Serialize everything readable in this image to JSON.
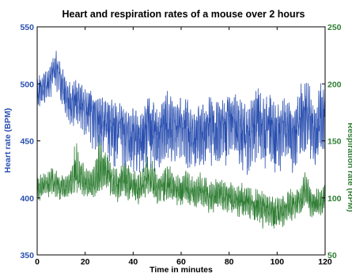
{
  "chart_data": {
    "type": "line",
    "title": "Heart and respiration rates of a mouse over 2 hours",
    "xlabel": "Time in minutes",
    "xlim": [
      0,
      120
    ],
    "xticks": [
      0,
      20,
      40,
      60,
      80,
      100,
      120
    ],
    "grid": false,
    "legend": "none",
    "y_left": {
      "label": "Heart rate (BPM)",
      "lim": [
        350,
        550
      ],
      "ticks": [
        350,
        400,
        450,
        500,
        550
      ],
      "color": "#2a4fb0"
    },
    "y_right": {
      "label": "Respiration rate (RPM)",
      "lim": [
        50,
        250
      ],
      "ticks": [
        50,
        100,
        150,
        200,
        250
      ],
      "color": "#2e7d32"
    },
    "series": [
      {
        "axis": "left",
        "color": "#2a4fb0",
        "x": [
          0,
          2,
          4,
          6,
          8,
          10,
          12,
          14,
          16,
          18,
          20,
          22,
          24,
          26,
          28,
          30,
          32,
          34,
          36,
          38,
          40,
          42,
          44,
          46,
          48,
          50,
          52,
          54,
          56,
          58,
          60,
          62,
          64,
          66,
          68,
          70,
          72,
          74,
          76,
          78,
          80,
          82,
          84,
          86,
          88,
          90,
          92,
          94,
          96,
          98,
          100,
          102,
          104,
          106,
          108,
          110,
          112,
          114,
          116,
          118,
          120
        ],
        "y": [
          492,
          496,
          500,
          508,
          515,
          502,
          490,
          483,
          488,
          486,
          482,
          478,
          474,
          470,
          466,
          467,
          463,
          464,
          462,
          458,
          455,
          453,
          456,
          465,
          462,
          454,
          459,
          468,
          464,
          461,
          468,
          463,
          456,
          452,
          462,
          458,
          466,
          460,
          462,
          465,
          468,
          471,
          462,
          458,
          452,
          464,
          470,
          462,
          465,
          463,
          458,
          462,
          466,
          455,
          462,
          472,
          475,
          470,
          455,
          475,
          480
        ],
        "min": [
          478,
          480,
          482,
          488,
          492,
          478,
          465,
          458,
          462,
          458,
          452,
          445,
          442,
          438,
          434,
          430,
          428,
          426,
          428,
          424,
          420,
          418,
          422,
          428,
          426,
          420,
          424,
          430,
          428,
          424,
          430,
          426,
          420,
          418,
          424,
          420,
          428,
          422,
          426,
          428,
          430,
          434,
          426,
          420,
          416,
          426,
          432,
          424,
          428,
          426,
          420,
          424,
          428,
          418,
          424,
          430,
          434,
          428,
          420,
          436,
          440
        ],
        "max": [
          505,
          510,
          514,
          522,
          530,
          518,
          506,
          500,
          504,
          502,
          498,
          494,
          492,
          490,
          488,
          490,
          486,
          488,
          486,
          482,
          480,
          478,
          482,
          492,
          488,
          480,
          485,
          494,
          490,
          486,
          494,
          488,
          482,
          478,
          488,
          484,
          492,
          486,
          488,
          491,
          494,
          497,
          488,
          484,
          478,
          490,
          496,
          488,
          491,
          489,
          484,
          488,
          492,
          480,
          488,
          500,
          504,
          496,
          482,
          500,
          502
        ]
      },
      {
        "axis": "right",
        "color": "#2e7d32",
        "x": [
          0,
          2,
          4,
          6,
          8,
          10,
          12,
          14,
          16,
          18,
          20,
          22,
          24,
          26,
          28,
          30,
          32,
          34,
          36,
          38,
          40,
          42,
          44,
          46,
          48,
          50,
          52,
          54,
          56,
          58,
          60,
          62,
          64,
          66,
          68,
          70,
          72,
          74,
          76,
          78,
          80,
          82,
          84,
          86,
          88,
          90,
          92,
          94,
          96,
          98,
          100,
          102,
          104,
          106,
          108,
          110,
          112,
          114,
          116,
          118,
          120
        ],
        "y": [
          108,
          110,
          112,
          115,
          112,
          110,
          108,
          112,
          120,
          118,
          112,
          110,
          114,
          118,
          125,
          118,
          112,
          110,
          114,
          112,
          110,
          108,
          112,
          116,
          114,
          108,
          110,
          112,
          110,
          106,
          108,
          110,
          106,
          104,
          108,
          104,
          100,
          102,
          104,
          100,
          101,
          98,
          97,
          99,
          96,
          95,
          94,
          92,
          90,
          88,
          86,
          88,
          92,
          94,
          95,
          98,
          108,
          96,
          94,
          96,
          99
        ],
        "min": [
          96,
          98,
          100,
          102,
          100,
          98,
          96,
          100,
          105,
          104,
          100,
          98,
          100,
          104,
          108,
          104,
          98,
          96,
          100,
          98,
          96,
          94,
          98,
          102,
          100,
          95,
          96,
          98,
          96,
          92,
          94,
          96,
          92,
          90,
          94,
          90,
          86,
          88,
          90,
          86,
          87,
          84,
          83,
          85,
          82,
          81,
          80,
          72,
          76,
          74,
          72,
          74,
          78,
          80,
          82,
          84,
          92,
          82,
          80,
          82,
          86
        ],
        "max": [
          120,
          122,
          124,
          130,
          125,
          123,
          120,
          128,
          150,
          140,
          128,
          124,
          135,
          160,
          145,
          135,
          127,
          125,
          145,
          130,
          125,
          122,
          128,
          140,
          132,
          122,
          125,
          130,
          128,
          120,
          124,
          128,
          120,
          118,
          125,
          118,
          115,
          117,
          120,
          114,
          116,
          112,
          111,
          114,
          110,
          109,
          108,
          106,
          104,
          102,
          100,
          102,
          106,
          108,
          110,
          115,
          125,
          110,
          108,
          110,
          113
        ]
      }
    ]
  }
}
